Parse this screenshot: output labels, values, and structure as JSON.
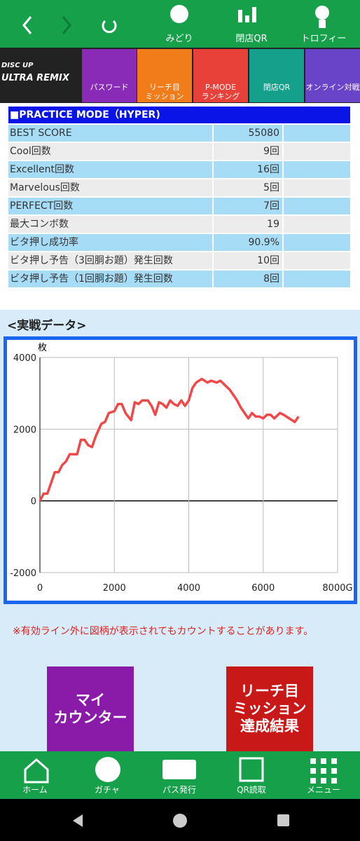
{
  "header": {
    "items": [
      "みどり",
      "閉店QR",
      "トロフィー"
    ]
  },
  "menu": {
    "logo_top": "DISC UP",
    "logo_main": "ULTRA REMIX",
    "items": [
      "パスワード",
      "リーチ目\nミッション",
      "P-MODE\nランキング",
      "閉店QR",
      "オンライン対戦"
    ]
  },
  "table": {
    "title": "■PRACTICE MODE（HYPER)",
    "rows": [
      [
        "BEST SCORE",
        "55080"
      ],
      [
        "Cool回数",
        "9回"
      ],
      [
        "Excellent回数",
        "16回"
      ],
      [
        "Marvelous回数",
        "5回"
      ],
      [
        "PERFECT回数",
        "7回"
      ],
      [
        "最大コンボ数",
        "19"
      ],
      [
        "ビタ押し成功率",
        "90.9%"
      ],
      [
        "ビタ押し予告（3回胴お題）発生回数",
        "10回"
      ],
      [
        "ビタ押し予告（1回胴お題）発生回数",
        "8回"
      ]
    ]
  },
  "section_title": "<実戦データ>",
  "chart_data": {
    "type": "line",
    "y_label": "枚",
    "x": [
      0,
      100,
      200,
      400,
      500,
      600,
      700,
      800,
      1000,
      1100,
      1200,
      1300,
      1400,
      1500,
      1650,
      1750,
      1850,
      2000,
      2100,
      2200,
      2300,
      2450,
      2550,
      2650,
      2750,
      2900,
      3000,
      3100,
      3200,
      3300,
      3400,
      3500,
      3600,
      3700,
      3800,
      3900,
      4000,
      4100,
      4200,
      4350,
      4500,
      4600,
      4750,
      4850,
      5000,
      5100,
      5300,
      5400,
      5600,
      5700,
      5800,
      5900,
      6000,
      6100,
      6200,
      6300,
      6450,
      6550,
      6700,
      6850,
      6950
    ],
    "series": [
      {
        "color": "#f04848",
        "values": [
          0,
          200,
          200,
          800,
          800,
          1000,
          1100,
          1300,
          1300,
          1700,
          1700,
          1550,
          1500,
          1800,
          2150,
          2200,
          2450,
          2500,
          2700,
          2700,
          2450,
          2250,
          2750,
          2700,
          2800,
          2800,
          2650,
          2400,
          2750,
          2700,
          2600,
          2800,
          2700,
          2650,
          2800,
          2650,
          2800,
          3150,
          3300,
          3400,
          3300,
          3350,
          3300,
          3350,
          3200,
          3100,
          2800,
          2600,
          2300,
          2450,
          2350,
          2350,
          2300,
          2400,
          2400,
          2300,
          2450,
          2400,
          2300,
          2200,
          2350
        ]
      }
    ],
    "xlim": [
      0,
      8000
    ],
    "xticks": [
      0,
      2000,
      4000,
      6000,
      {
        "value": 8000,
        "label": "8000G"
      }
    ],
    "ylim": [
      -2000,
      4000
    ],
    "yticks": [
      -2000,
      0,
      2000,
      4000
    ],
    "grid": true
  },
  "note": "※有効ライン外に図柄が表示されてもカウントすることがあります。",
  "buttons": [
    "マイ\nカウンター",
    "リーチ目\nミッション\n達成結果"
  ],
  "bottom_nav": [
    "ホーム",
    "ガチャ",
    "パス発行",
    "QR読取",
    "メニュー"
  ]
}
